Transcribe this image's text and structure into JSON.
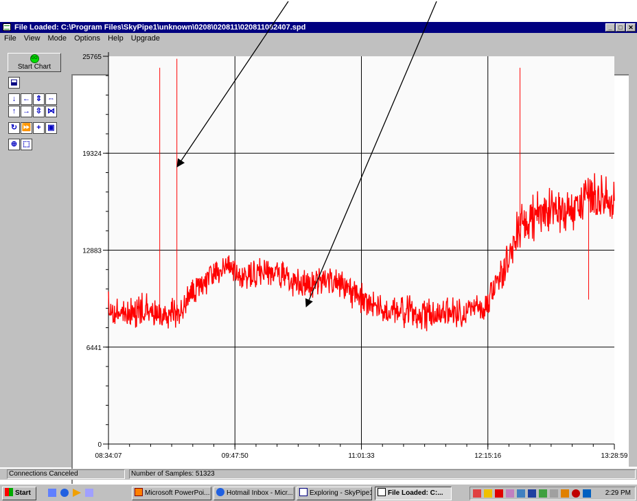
{
  "window": {
    "title": "File Loaded: C:\\Program Files\\SkyPipe1\\unknown\\0208\\020811\\020811082407.spd",
    "buttons": {
      "minimize": "_",
      "maximize": "□",
      "close": "✕"
    }
  },
  "menu": [
    {
      "label": "File"
    },
    {
      "label": "View"
    },
    {
      "label": "Mode"
    },
    {
      "label": "Options"
    },
    {
      "label": "Help"
    },
    {
      "label": "Upgrade"
    }
  ],
  "toolbar": {
    "start_chart_label": "Start Chart",
    "go_label": "GO",
    "tools": [
      {
        "icon": "save-icon",
        "glyph": "⬓"
      },
      {
        "icon": "arrow-down-icon",
        "glyph": "↓"
      },
      {
        "icon": "arrow-left-icon",
        "glyph": "←"
      },
      {
        "icon": "expand-vertical-icon",
        "glyph": "⇕"
      },
      {
        "icon": "expand-horizontal-icon",
        "glyph": "⇔"
      },
      {
        "icon": "arrow-up-icon",
        "glyph": "↑"
      },
      {
        "icon": "arrow-right-icon",
        "glyph": "→"
      },
      {
        "icon": "compress-vertical-icon",
        "glyph": "⇳"
      },
      {
        "icon": "compress-horizontal-icon",
        "glyph": "⋈"
      },
      {
        "icon": "refresh-icon",
        "glyph": "↻"
      },
      {
        "icon": "fast-forward-icon",
        "glyph": "⏩"
      },
      {
        "icon": "crosshair-icon",
        "glyph": "+"
      },
      {
        "icon": "zoom-box-icon",
        "glyph": "▣"
      },
      {
        "icon": "center-icon",
        "glyph": "⊕"
      },
      {
        "icon": "select-area-icon",
        "glyph": "⬚"
      }
    ]
  },
  "chart_data": {
    "type": "line",
    "y_ticks": [
      "25765",
      "19324",
      "12883",
      "6441",
      "0"
    ],
    "x_ticks": [
      "08:34:07",
      "09:47:50",
      "11:01:33",
      "12:15:16",
      "13:28:59"
    ],
    "ylim": [
      0,
      25765
    ],
    "grid": true,
    "series_color": "#ff0000",
    "series": [
      {
        "x": [
          "08:34",
          "08:44",
          "08:54",
          "09:04",
          "09:14",
          "09:24",
          "09:34",
          "09:44",
          "09:54",
          "10:04",
          "10:14",
          "10:24",
          "10:34",
          "10:44",
          "10:54",
          "11:04",
          "11:14",
          "11:24",
          "11:34",
          "11:44",
          "11:54",
          "12:04",
          "12:14",
          "12:24",
          "12:34",
          "12:44",
          "12:54",
          "13:04",
          "13:14",
          "13:24"
        ],
        "values": [
          9000,
          8800,
          8900,
          8700,
          8600,
          10300,
          11300,
          11700,
          10900,
          11400,
          11200,
          10800,
          10600,
          10900,
          10200,
          9500,
          9100,
          8800,
          8600,
          8500,
          8700,
          8900,
          9100,
          11500,
          14500,
          15000,
          15600,
          15300,
          16500,
          16300
        ]
      }
    ],
    "spikes": [
      {
        "x": "09:04",
        "y": 25000
      },
      {
        "x": "09:14",
        "y": 25600
      },
      {
        "x": "12:34",
        "y": 25000
      },
      {
        "x": "13:14",
        "y": 9600
      }
    ]
  },
  "status": {
    "left": "Connections Canceled",
    "right": "Number of Samples: 51323"
  },
  "taskbar": {
    "start_label": "Start",
    "tasks": [
      {
        "label": "Microsoft PowerPoi..."
      },
      {
        "label": "Hotmail Inbox - Micr..."
      },
      {
        "label": "Exploring - SkyPipe1"
      },
      {
        "label": "File Loaded: C:..."
      }
    ],
    "clock": "2:29 PM"
  }
}
